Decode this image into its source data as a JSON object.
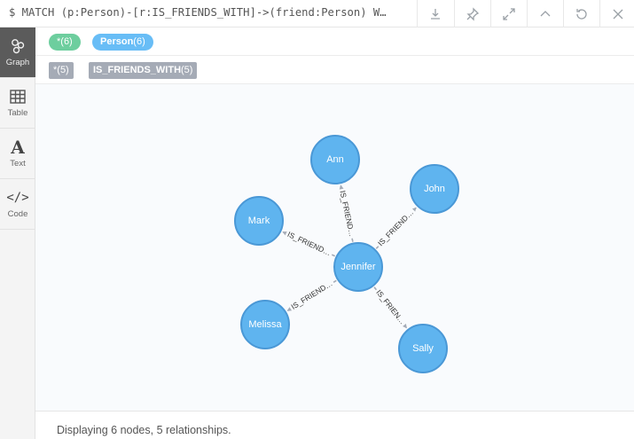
{
  "query": "$ MATCH (p:Person)-[r:IS_FRIENDS_WITH]->(friend:Person) W…",
  "toolbar": {
    "buttons": [
      {
        "name": "download-icon"
      },
      {
        "name": "pin-icon"
      },
      {
        "name": "expand-icon"
      },
      {
        "name": "collapse-up-icon"
      },
      {
        "name": "rerun-icon"
      },
      {
        "name": "close-icon"
      }
    ]
  },
  "sidebar": {
    "items": [
      {
        "label": "Graph",
        "icon": "graph-icon",
        "active": true
      },
      {
        "label": "Table",
        "icon": "table-icon"
      },
      {
        "label": "Text",
        "icon": "text-icon",
        "glyph": "A"
      },
      {
        "label": "Code",
        "icon": "code-icon",
        "glyph": "</>"
      }
    ]
  },
  "node_labels": {
    "all": {
      "name": "*",
      "count": "(6)",
      "color": "#6dce9e"
    },
    "person": {
      "name": "Person",
      "count": "(6)",
      "color": "#68bdf6"
    }
  },
  "rel_types": {
    "all": {
      "name": "*",
      "count": "(5)"
    },
    "friends": {
      "name": "IS_FRIENDS_WITH",
      "count": "(5)"
    }
  },
  "graph": {
    "node_color": "#5fb4ef",
    "node_stroke": "#4a98d6",
    "nodes": [
      "Ann",
      "John",
      "Mark",
      "Jennifer",
      "Melissa",
      "Sally"
    ],
    "relationships": [
      "IS_FRIEND…",
      "IS_FRIEND…",
      "IS_FRIEND…",
      "IS_FRIEND…",
      "IS_FRIEN…"
    ]
  },
  "status": "Displaying 6 nodes, 5 relationships."
}
